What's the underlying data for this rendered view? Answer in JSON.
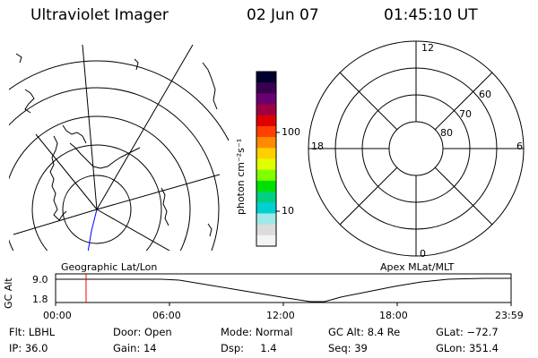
{
  "header": {
    "instrument": "Ultraviolet Imager",
    "date": "02 Jun 07",
    "time": "01:45:10 UT"
  },
  "colorbar": {
    "unit_label": "photon cm⁻²s⁻¹",
    "ticks": [
      "100",
      "10"
    ],
    "colors": [
      "#000030",
      "#3a0050",
      "#6a0070",
      "#a00040",
      "#e00000",
      "#ff4000",
      "#ff8c00",
      "#ffd000",
      "#e0ff00",
      "#80ff00",
      "#00e000",
      "#00d080",
      "#00d0d0",
      "#a0e8e8",
      "#dcdcdc",
      "#f4f4f4"
    ]
  },
  "map_left": {
    "label": "Geographic Lat/Lon"
  },
  "map_right": {
    "label": "Apex MLat/MLT",
    "mlt_labels": {
      "top": "12",
      "left": "18",
      "right": "6",
      "bottom": "0"
    },
    "lat_labels": [
      "60",
      "70",
      "80"
    ]
  },
  "altitude_plot": {
    "ylabel": "GC Alt",
    "yticks": [
      "9.0",
      "1.8"
    ],
    "xticks": [
      "00:00",
      "06:00",
      "12:00",
      "18:00",
      "23:59"
    ],
    "marker_color": "#ff0000"
  },
  "info": {
    "row1": {
      "filter": "Flt: LBHL",
      "door": "Door: Open",
      "mode": "Mode: Normal",
      "gc_alt": "GC Alt: 8.4 Re",
      "glat": "GLat: −72.7"
    },
    "row2": {
      "ip": "IP: 36.0",
      "gain": "Gain: 14",
      "dsp": "Dsp:     1.4",
      "seq": "Seq: 39",
      "glon": "GLon: 351.4"
    }
  }
}
